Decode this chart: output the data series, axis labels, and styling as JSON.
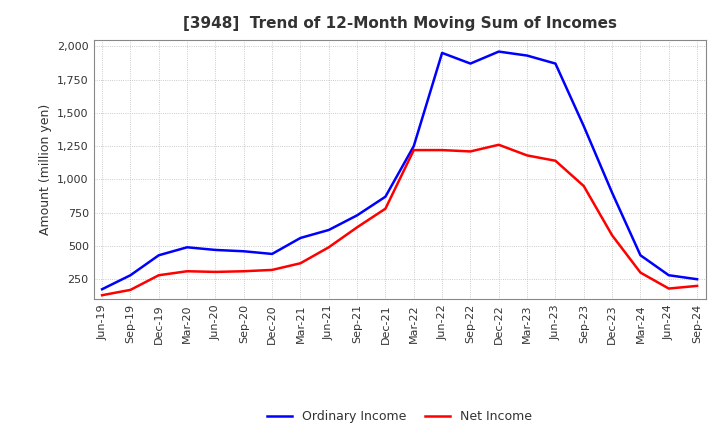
{
  "title": "[3948]  Trend of 12-Month Moving Sum of Incomes",
  "ylabel": "Amount (million yen)",
  "ylim": [
    100,
    2050
  ],
  "yticks": [
    250,
    500,
    750,
    1000,
    1250,
    1500,
    1750,
    2000
  ],
  "x_labels": [
    "Jun-19",
    "Sep-19",
    "Dec-19",
    "Mar-20",
    "Jun-20",
    "Sep-20",
    "Dec-20",
    "Mar-21",
    "Jun-21",
    "Sep-21",
    "Dec-21",
    "Mar-22",
    "Jun-22",
    "Sep-22",
    "Dec-22",
    "Mar-23",
    "Jun-23",
    "Sep-23",
    "Dec-23",
    "Mar-24",
    "Jun-24",
    "Sep-24"
  ],
  "ordinary_income": [
    175,
    280,
    430,
    490,
    470,
    460,
    440,
    560,
    620,
    730,
    870,
    1250,
    1950,
    1870,
    1960,
    1930,
    1870,
    1400,
    900,
    430,
    280,
    250
  ],
  "net_income": [
    130,
    170,
    280,
    310,
    305,
    310,
    320,
    370,
    490,
    640,
    780,
    1220,
    1220,
    1210,
    1260,
    1180,
    1140,
    950,
    580,
    300,
    180,
    200
  ],
  "ordinary_color": "#0000FF",
  "net_color": "#FF0000",
  "background_color": "#FFFFFF",
  "grid_color": "#BBBBBB",
  "title_fontsize": 11,
  "title_color": "#333333",
  "label_fontsize": 9,
  "tick_fontsize": 8,
  "legend_fontsize": 9,
  "line_width": 1.8
}
